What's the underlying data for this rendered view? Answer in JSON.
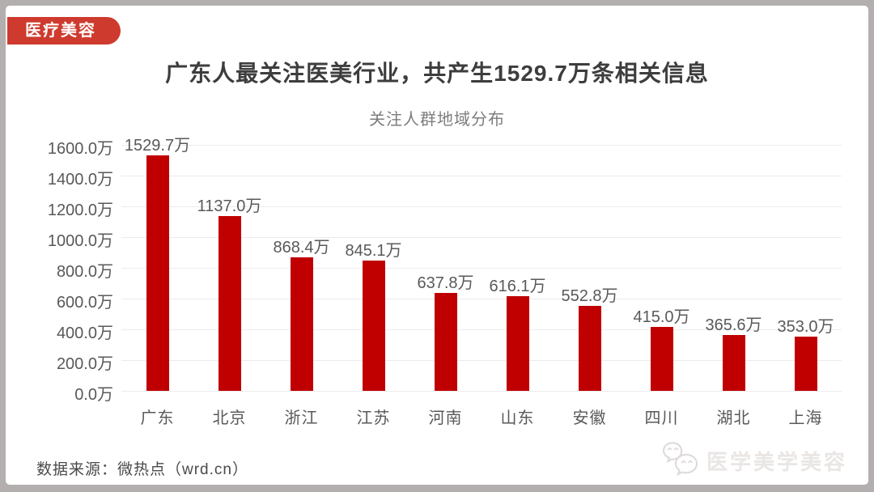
{
  "badge": {
    "label": "医疗美容"
  },
  "title": "广东人最关注医美行业，共产生1529.7万条相关信息",
  "chart_data": {
    "type": "bar",
    "title": "关注人群地域分布",
    "categories": [
      "广东",
      "北京",
      "浙江",
      "江苏",
      "河南",
      "山东",
      "安徽",
      "四川",
      "湖北",
      "上海"
    ],
    "values": [
      1529.7,
      1137.0,
      868.4,
      845.1,
      637.8,
      616.1,
      552.8,
      415.0,
      365.6,
      353.0
    ],
    "value_suffix": "万",
    "y_ticks": [
      "1600.0万",
      "1400.0万",
      "1200.0万",
      "1000.0万",
      "800.0万",
      "600.0万",
      "400.0万",
      "200.0万",
      "0.0万"
    ],
    "ylim": [
      0,
      1600
    ],
    "grid": true,
    "legend": "none",
    "bar_color": "#c00000"
  },
  "footer": {
    "source": "数据来源：微热点（wrd.cn）",
    "watermark": "医学美学美容",
    "watermark_icon": "wechat-icon"
  },
  "colors": {
    "frame": "#b3afae",
    "badge_red": "#ce3a2e",
    "bar_red": "#c00000",
    "title_text": "#3d3d3d",
    "axis_text": "#595959",
    "grid_line": "#ececec"
  }
}
